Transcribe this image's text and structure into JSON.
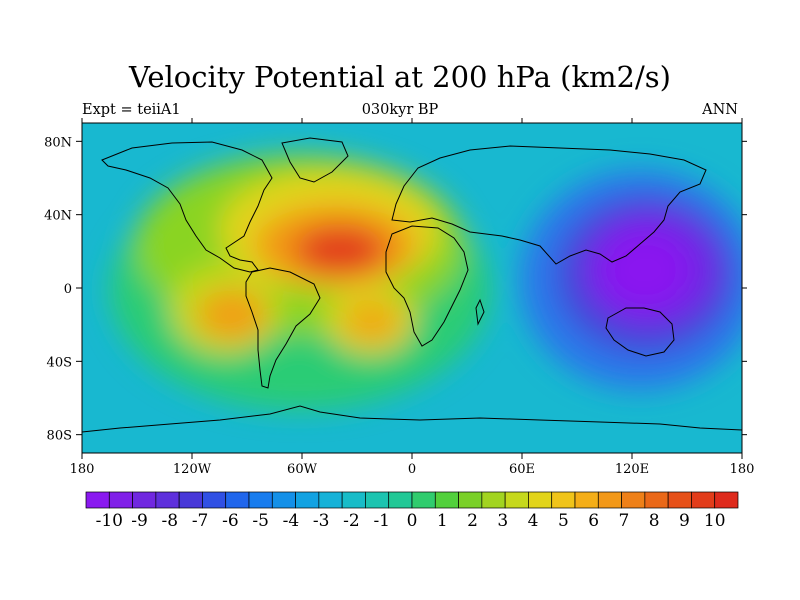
{
  "title": "Velocity Potential at 200 hPa (km2/s)",
  "left_string": "Expt = teiiA1",
  "center_string": "030kyr BP",
  "right_string": "ANN",
  "map": {
    "projection": "cylindrical-equidistant",
    "lon_range": [
      -180,
      180
    ],
    "lat_range": [
      -90,
      90
    ],
    "lon_ticks": [
      {
        "value": -180,
        "label": "180"
      },
      {
        "value": -120,
        "label": "120W"
      },
      {
        "value": -60,
        "label": "60W"
      },
      {
        "value": 0,
        "label": "0"
      },
      {
        "value": 60,
        "label": "60E"
      },
      {
        "value": 120,
        "label": "120E"
      },
      {
        "value": 180,
        "label": "180"
      }
    ],
    "lat_ticks": [
      {
        "value": 80,
        "label": "80N"
      },
      {
        "value": 40,
        "label": "40N"
      },
      {
        "value": 0,
        "label": "0"
      },
      {
        "value": -40,
        "label": "40S"
      },
      {
        "value": -80,
        "label": "80S"
      }
    ],
    "field_centers": [
      {
        "lon": -40,
        "lat": 22,
        "value": 9.5
      },
      {
        "lon": -95,
        "lat": -18,
        "value": 7.5
      },
      {
        "lon": -20,
        "lat": -20,
        "value": 7.0
      },
      {
        "lon": 135,
        "lat": 0,
        "value": -10.0
      }
    ]
  },
  "colorbar": {
    "labels": [
      "-10",
      "-9",
      "-8",
      "-7",
      "-6",
      "-5",
      "-4",
      "-3",
      "-2",
      "-1",
      "0",
      "1",
      "2",
      "3",
      "4",
      "5",
      "6",
      "7",
      "8",
      "9",
      "10"
    ],
    "colors": [
      "#8a19f0",
      "#8020e8",
      "#7028e0",
      "#5e30dc",
      "#4838d8",
      "#3050e4",
      "#2066ec",
      "#187cee",
      "#1490e8",
      "#12a2e2",
      "#16b2d8",
      "#18bcc8",
      "#1cc4b0",
      "#22c896",
      "#30cc6e",
      "#52d03c",
      "#7ad028",
      "#a2d420",
      "#c6d81c",
      "#e2d41a",
      "#f0c41a",
      "#f4ae18",
      "#f29818",
      "#ee8018",
      "#ea6818",
      "#e65018",
      "#e23c1a",
      "#de2a1c"
    ]
  }
}
